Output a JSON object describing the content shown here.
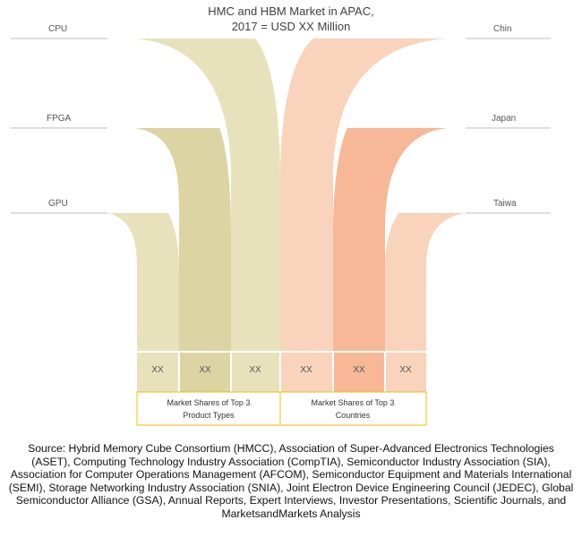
{
  "title": {
    "line1": "HMC and HBM Market in APAC,",
    "line2": "2017 = USD XX Million"
  },
  "left_labels": [
    "CPU",
    "FPGA",
    "GPU"
  ],
  "right_labels": [
    "Chin",
    "Japan",
    "Taiwa"
  ],
  "cells": [
    "XX",
    "XX",
    "XX",
    "XX",
    "XX",
    "XX"
  ],
  "groups": [
    {
      "line1": "Market Shares of Top 3",
      "line2": "Product Types"
    },
    {
      "line1": "Market Shares of Top 3",
      "line2": "Countries"
    }
  ],
  "source": "Source: Hybrid Memory Cube Consortium (HMCC), Association of Super-Advanced Electronics Technologies (ASET), Computing Technology Industry Association (CompTIA), Semiconductor Industry Association (SIA), Association for Computer Operations Management (AFCOM), Semiconductor Equipment and Materials International (SEMI), Storage Networking Industry Association (SNIA), Joint Electron Device Engineering Council (JEDEC), Global Semiconductor Alliance (GSA), Annual Reports, Expert Interviews, Investor Presentations, Scientific Journals, and MarketsandMarkets Analysis",
  "colors": {
    "left_light": "#e8e2bc",
    "left_mid": "#dcd4a2",
    "left_back": "#e2dcb0",
    "right_light": "#f9d3bb",
    "right_mid": "#f6b896",
    "right_back": "#f8c7aa",
    "border_gold": "#f2c200",
    "line_gray": "#bfbfbf"
  }
}
